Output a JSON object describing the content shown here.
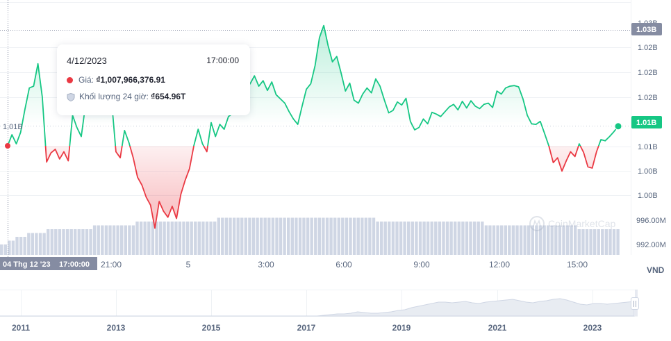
{
  "tooltip": {
    "date": "4/12/2023",
    "time": "17:00:00",
    "price_label": "Giá:",
    "price_value": "₫1,007,966,376.91",
    "volume_label": "Khối lượng 24 giờ:",
    "volume_value": "₫654.96T"
  },
  "crosshair": {
    "date_label": "04 Thg 12 '23",
    "time_label": "17:00:00"
  },
  "current_price_label": "1.01B",
  "top_reference_label": "1.03B",
  "left_reference_label": "1.01B",
  "currency": "VND",
  "watermark": "CoinMarketCap",
  "colors": {
    "up": "#16c784",
    "down": "#ea3943",
    "volume": "#cfd6e4",
    "nav_fill": "#e8ecf2"
  },
  "chart_data": {
    "type": "line",
    "x_ticks": [
      "21:00",
      "5",
      "3:00",
      "6:00",
      "9:00",
      "12:00",
      "15:00"
    ],
    "baseline": 1007966376.91,
    "ylim": [
      990000000,
      1032000000
    ],
    "price_tick_labels": [
      "1.03B",
      "1.02B",
      "1.02B",
      "1.02B",
      "1.01B",
      "1.01B",
      "1.00B",
      "1.00B"
    ],
    "volume_tick_labels": [
      "996.00M",
      "992.00M"
    ],
    "series": [
      {
        "values": [
          1007966377,
          1009800000,
          1008300000,
          1010200000,
          1014000000,
          1017500000,
          1017800000,
          1021500000,
          1016000000,
          1005300000,
          1006800000,
          1007400000,
          1005800000,
          1007000000,
          1005500000,
          1013000000,
          1011000000,
          1009500000,
          1014800000,
          1013500000,
          1017000000,
          1016200000,
          1014800000,
          1016000000,
          1015500000,
          1007000000,
          1006000000,
          1010500000,
          1008500000,
          1006000000,
          1002800000,
          1001500000,
          999500000,
          998200000,
          994400000,
          998800000,
          997200000,
          996200000,
          998000000,
          996000000,
          1000000000,
          1002300000,
          1004200000,
          1008000000,
          1010700000,
          1008300000,
          1007000000,
          1011800000,
          1009500000,
          1011500000,
          1010700000,
          1012800000,
          1013300000,
          1015200000,
          1016800000,
          1017300000,
          1018200000,
          1019500000,
          1017800000,
          1018700000,
          1017100000,
          1018500000,
          1016400000,
          1015700000,
          1015000000,
          1013600000,
          1012400000,
          1011500000,
          1014500000,
          1017300000,
          1018200000,
          1021200000,
          1025800000,
          1027800000,
          1024500000,
          1021800000,
          1022700000,
          1020000000,
          1017000000,
          1018300000,
          1015500000,
          1015000000,
          1016500000,
          1017500000,
          1016700000,
          1019000000,
          1017800000,
          1015500000,
          1013400000,
          1013800000,
          1015200000,
          1014700000,
          1015800000,
          1012000000,
          1010600000,
          1011000000,
          1012400000,
          1011600000,
          1013500000,
          1013200000,
          1012800000,
          1013600000,
          1014400000,
          1014800000,
          1013900000,
          1015300000,
          1014200000,
          1015400000,
          1014500000,
          1014100000,
          1014800000,
          1015000000,
          1014300000,
          1017000000,
          1016500000,
          1017500000,
          1017800000,
          1017900000,
          1017700000,
          1015700000,
          1013000000,
          1011600000,
          1011500000,
          1012000000,
          1010000000,
          1007900000,
          1005200000,
          1006000000,
          1003800000,
          1005500000,
          1007000000,
          1006200000,
          1008300000,
          1006900000,
          1004500000,
          1004300000,
          1007000000,
          1009000000,
          1008800000,
          1009500000,
          1010300000,
          1011200000
        ]
      }
    ],
    "volume": [
      92,
      92,
      93,
      93,
      94,
      94,
      94,
      95,
      95,
      95,
      95,
      95,
      96,
      96,
      96,
      96,
      96,
      96,
      96,
      96,
      96,
      96,
      96,
      96,
      97,
      97,
      97,
      97,
      97,
      97,
      97,
      97,
      97,
      97,
      97,
      98,
      98,
      98,
      98,
      98,
      98,
      98,
      98,
      98,
      98,
      98,
      98,
      98,
      98,
      98,
      98,
      98,
      98,
      98,
      98,
      98,
      99,
      99,
      99,
      99,
      99,
      99,
      99,
      99,
      99,
      99,
      99,
      99,
      99,
      99,
      99,
      99,
      99,
      99,
      99,
      99,
      99,
      99,
      99,
      99,
      99,
      99,
      99,
      99,
      99,
      99,
      99,
      99,
      99,
      99,
      99,
      99,
      99,
      99,
      99,
      99,
      99,
      98,
      98,
      98,
      98,
      98,
      98,
      98,
      98,
      98,
      98,
      98,
      98,
      98,
      98,
      98,
      98,
      98,
      98,
      98,
      98,
      98,
      98,
      98,
      98,
      98,
      98,
      98,
      98,
      97,
      97,
      97,
      97,
      97,
      97,
      97,
      97,
      97,
      97,
      97,
      97,
      97,
      97,
      97,
      97,
      97,
      97,
      97,
      97,
      97,
      97,
      97,
      97,
      96,
      96,
      96,
      96,
      96,
      96,
      96,
      96,
      96,
      96,
      96
    ]
  },
  "navigator": {
    "year_labels": [
      "2011",
      "2013",
      "2015",
      "2017",
      "2019",
      "2021",
      "2023"
    ],
    "values": [
      0,
      0,
      0,
      0,
      0,
      0,
      0,
      0,
      0,
      0,
      0,
      0,
      0,
      0,
      0,
      0,
      0,
      0,
      0,
      0,
      0,
      0,
      0,
      0,
      0,
      0,
      0,
      0,
      0,
      0,
      0,
      0,
      0,
      0,
      0,
      0,
      0,
      0,
      0,
      0,
      0,
      0,
      0,
      0,
      0,
      0,
      0,
      0,
      1,
      2,
      3,
      3,
      4,
      6,
      5,
      4,
      4,
      5,
      6,
      8,
      9,
      12,
      14,
      16,
      18,
      20,
      20,
      19,
      20,
      21,
      19,
      18,
      20,
      21,
      22,
      23,
      24,
      22,
      20,
      19,
      21,
      22,
      24,
      25,
      23,
      20,
      17,
      16,
      18,
      18,
      17,
      18,
      19,
      20,
      21
    ]
  }
}
